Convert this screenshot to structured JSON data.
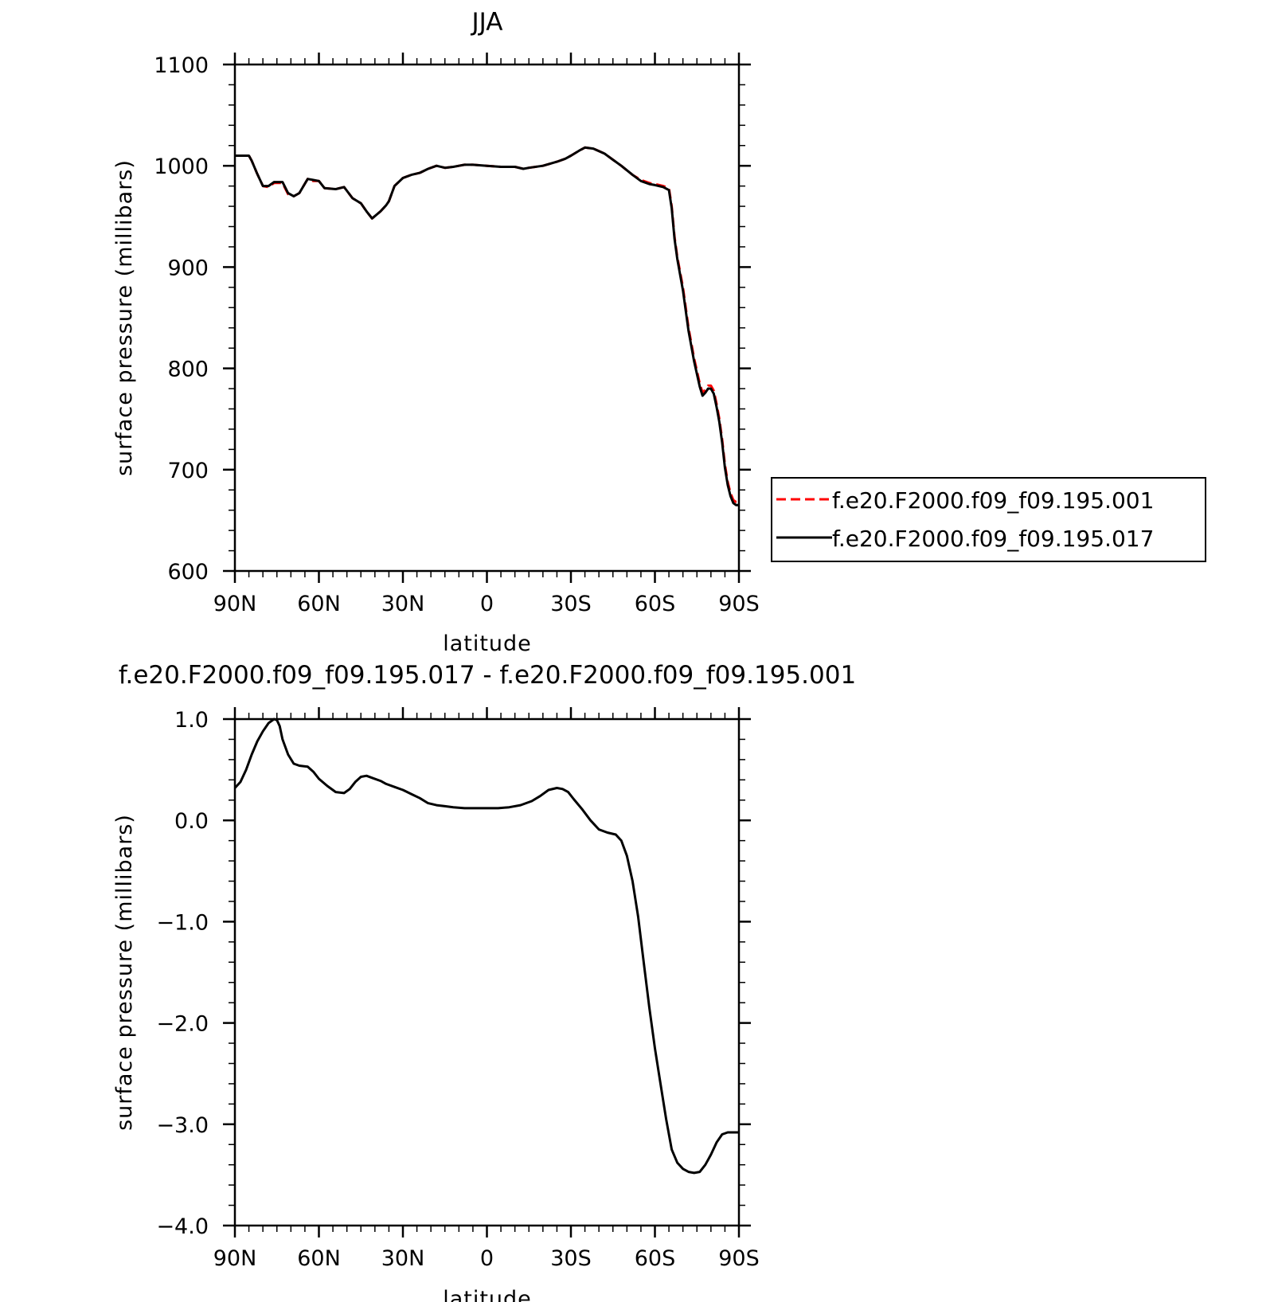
{
  "chart_data": [
    {
      "type": "line",
      "title": "JJA",
      "xlabel": "latitude",
      "ylabel": "surface pressure (millibars)",
      "xlim": [
        90,
        -90
      ],
      "ylim": [
        600,
        1100
      ],
      "x_tick_values": [
        90,
        60,
        30,
        0,
        -30,
        -60,
        -90
      ],
      "x_tick_labels": [
        "90N",
        "60N",
        "30N",
        "0",
        "30S",
        "60S",
        "90S"
      ],
      "y_tick_values": [
        600,
        700,
        800,
        900,
        1000,
        1100
      ],
      "y_tick_labels": [
        "600",
        "700",
        "800",
        "900",
        "1000",
        "1100"
      ],
      "legend_position": "right",
      "series": [
        {
          "name": "f.e20.F2000.f09_f09.195.001",
          "color": "#ff0000",
          "style": "dashed",
          "x": [
            90,
            85,
            84,
            82,
            80,
            78,
            76,
            73,
            71,
            69,
            67,
            64,
            62,
            60,
            58,
            54,
            51,
            48,
            45,
            43,
            41,
            38,
            36,
            35,
            33,
            30,
            27,
            24,
            21,
            18,
            15,
            12,
            10,
            8,
            5,
            0,
            -5,
            -10,
            -13,
            -15,
            -20,
            -25,
            -28,
            -30,
            -33,
            -35,
            -38,
            -42,
            -45,
            -48,
            -52,
            -55,
            -58,
            -60,
            -63,
            -65,
            -66,
            -67,
            -68,
            -70,
            -72,
            -74,
            -76,
            -77,
            -78,
            -79,
            -80,
            -81,
            -82,
            -83,
            -84,
            -85,
            -86,
            -87,
            -88,
            -89,
            -90
          ],
          "y": [
            1010,
            1010,
            1005,
            992,
            980,
            979,
            983,
            983,
            972,
            970,
            973,
            987,
            985,
            985,
            978,
            977,
            979,
            968,
            963,
            955,
            948,
            955,
            961,
            965,
            980,
            988,
            991,
            993,
            997,
            1000,
            998,
            999,
            1000,
            1001,
            1001,
            1000,
            999,
            999,
            997,
            998,
            1000,
            1004,
            1007,
            1010,
            1015,
            1018,
            1017,
            1012,
            1006,
            1000,
            991,
            986,
            983,
            982,
            980,
            978,
            960,
            930,
            910,
            880,
            840,
            810,
            785,
            776,
            779,
            783,
            783,
            778,
            765,
            750,
            730,
            705,
            688,
            677,
            670,
            668,
            668
          ]
        },
        {
          "name": "f.e20.F2000.f09_f09.195.017",
          "color": "#000000",
          "style": "solid",
          "x": [
            90,
            85,
            84,
            82,
            80,
            78,
            76,
            73,
            71,
            69,
            67,
            64,
            62,
            60,
            58,
            54,
            51,
            48,
            45,
            43,
            41,
            38,
            36,
            35,
            33,
            30,
            27,
            24,
            21,
            18,
            15,
            12,
            10,
            8,
            5,
            0,
            -5,
            -10,
            -13,
            -15,
            -20,
            -25,
            -28,
            -30,
            -33,
            -35,
            -38,
            -42,
            -45,
            -48,
            -52,
            -55,
            -58,
            -60,
            -63,
            -65,
            -66,
            -67,
            -68,
            -70,
            -72,
            -74,
            -76,
            -77,
            -78,
            -79,
            -80,
            -81,
            -82,
            -83,
            -84,
            -85,
            -86,
            -87,
            -88,
            -89,
            -90
          ],
          "y": [
            1010,
            1010,
            1005,
            992,
            980,
            980,
            984,
            984,
            973,
            970,
            973,
            987,
            986,
            985,
            978,
            977,
            979,
            968,
            963,
            955,
            948,
            955,
            961,
            965,
            980,
            988,
            991,
            993,
            997,
            1000,
            998,
            999,
            1000,
            1001,
            1001,
            1000,
            999,
            999,
            997,
            998,
            1000,
            1004,
            1007,
            1010,
            1015,
            1018,
            1017,
            1012,
            1006,
            1000,
            991,
            985,
            982,
            981,
            979,
            976,
            958,
            928,
            908,
            877,
            837,
            807,
            782,
            773,
            776,
            780,
            780,
            775,
            762,
            747,
            727,
            702,
            685,
            674,
            667,
            665,
            665
          ]
        }
      ]
    },
    {
      "type": "line",
      "title": "f.e20.F2000.f09_f09.195.017 - f.e20.F2000.f09_f09.195.001",
      "xlabel": "latitude",
      "ylabel": "surface pressure (millibars)",
      "xlim": [
        90,
        -90
      ],
      "ylim": [
        -4,
        1
      ],
      "x_tick_values": [
        90,
        60,
        30,
        0,
        -30,
        -60,
        -90
      ],
      "x_tick_labels": [
        "90N",
        "60N",
        "30N",
        "0",
        "30S",
        "60S",
        "90S"
      ],
      "y_tick_values": [
        -4,
        -3,
        -2,
        -1,
        0,
        1
      ],
      "y_tick_labels": [
        "-4.0",
        "-3.0",
        "-2.0",
        "-1.0",
        "0.0",
        "1.0"
      ],
      "series": [
        {
          "color": "#000000",
          "style": "solid",
          "x": [
            90,
            88,
            86,
            84,
            82,
            80,
            78,
            76,
            75,
            74,
            73,
            71,
            69,
            67,
            64,
            62,
            60,
            57,
            54,
            51,
            49,
            47,
            45,
            43,
            41,
            38,
            36,
            33,
            30,
            27,
            24,
            21,
            18,
            15,
            12,
            8,
            4,
            0,
            -4,
            -8,
            -12,
            -16,
            -19,
            -22,
            -25,
            -27,
            -29,
            -31,
            -34,
            -37,
            -40,
            -43,
            -46,
            -48,
            -50,
            -52,
            -54,
            -56,
            -58,
            -60,
            -62,
            -64,
            -66,
            -68,
            -70,
            -72,
            -74,
            -76,
            -78,
            -80,
            -82,
            -84,
            -86,
            -88,
            -90
          ],
          "y": [
            0.32,
            0.38,
            0.5,
            0.65,
            0.78,
            0.88,
            0.96,
            1.0,
            0.99,
            0.93,
            0.8,
            0.65,
            0.56,
            0.54,
            0.53,
            0.48,
            0.41,
            0.34,
            0.28,
            0.27,
            0.31,
            0.38,
            0.43,
            0.44,
            0.42,
            0.39,
            0.36,
            0.33,
            0.3,
            0.26,
            0.22,
            0.17,
            0.15,
            0.14,
            0.13,
            0.12,
            0.12,
            0.12,
            0.12,
            0.13,
            0.15,
            0.19,
            0.24,
            0.3,
            0.32,
            0.31,
            0.28,
            0.21,
            0.11,
            0.0,
            -0.09,
            -0.12,
            -0.14,
            -0.2,
            -0.35,
            -0.6,
            -0.95,
            -1.4,
            -1.85,
            -2.25,
            -2.6,
            -2.95,
            -3.25,
            -3.38,
            -3.44,
            -3.47,
            -3.48,
            -3.47,
            -3.4,
            -3.3,
            -3.18,
            -3.1,
            -3.08,
            -3.08,
            -3.08
          ]
        }
      ]
    }
  ]
}
